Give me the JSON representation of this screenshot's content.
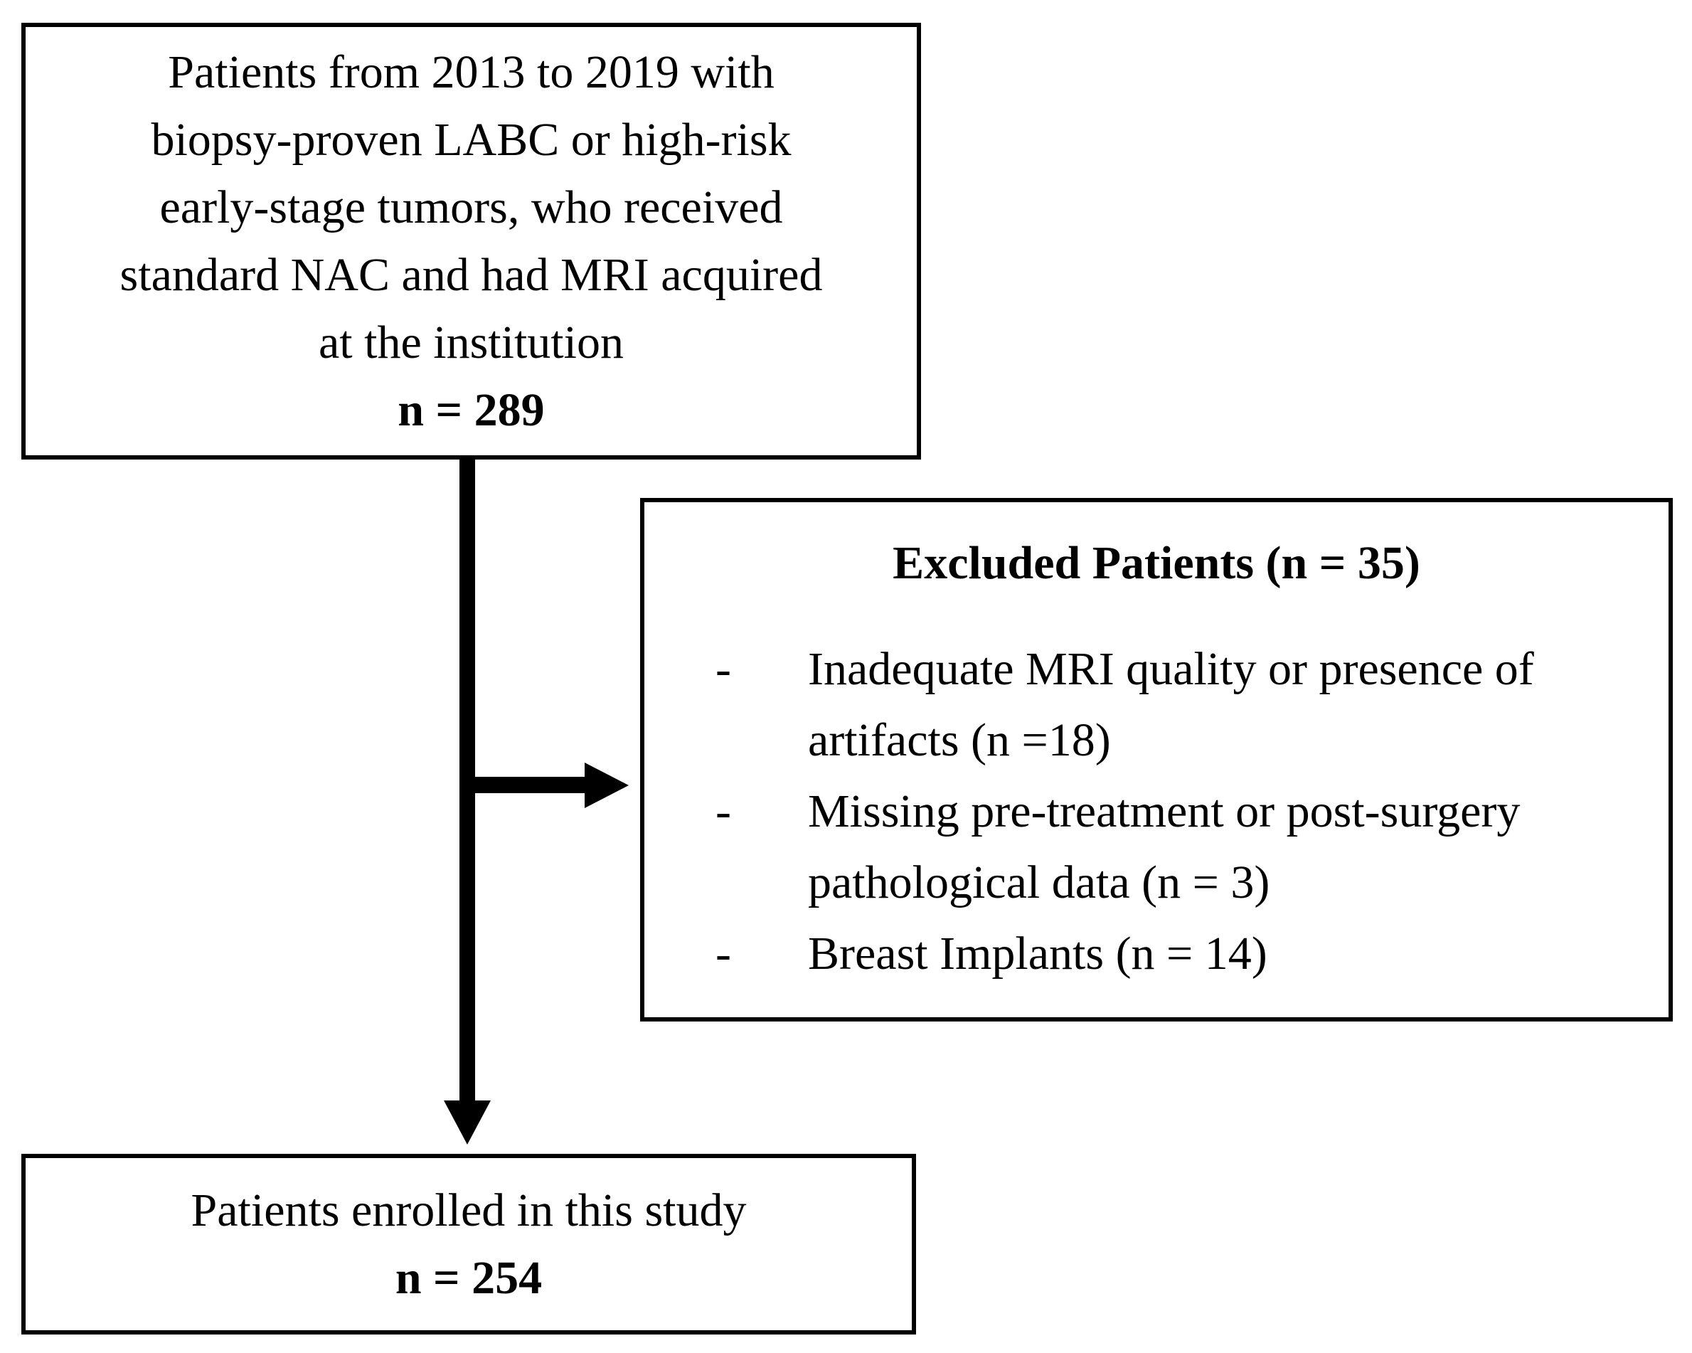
{
  "flow": {
    "top_box": {
      "lines": [
        "Patients from 2013 to 2019 with",
        "biopsy-proven LABC or high-risk",
        "early-stage tumors, who received",
        "standard NAC and had MRI acquired",
        "at the institution"
      ],
      "count": "n = 289"
    },
    "excluded_box": {
      "title": "Excluded Patients (n = 35)",
      "items": [
        {
          "marker": "-",
          "text": "Inadequate MRI quality or presence of artifacts (n =18)"
        },
        {
          "marker": "-",
          "text": "Missing pre-treatment or post-surgery pathological data (n = 3)"
        },
        {
          "marker": "-",
          "text": "Breast Implants (n = 14)"
        }
      ]
    },
    "bottom_box": {
      "line": "Patients enrolled in this study",
      "count": "n = 254"
    },
    "colors": {
      "line": "#000000",
      "background": "#ffffff"
    }
  }
}
